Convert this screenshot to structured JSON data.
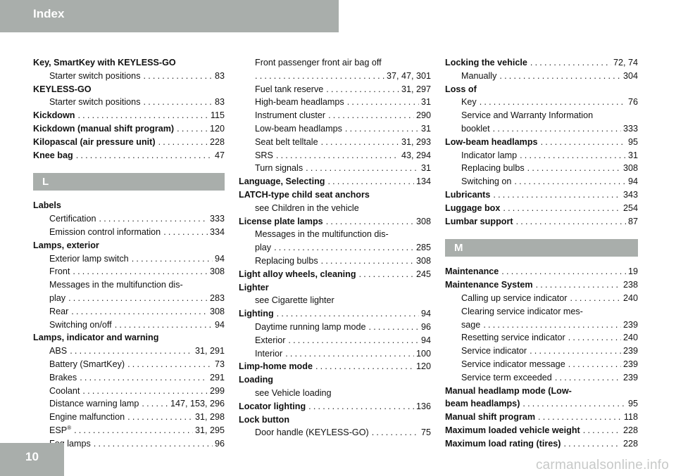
{
  "header": {
    "title": "Index"
  },
  "page": {
    "number": "10"
  },
  "watermark": "carmanualsonline.info",
  "columns": {
    "c1": {
      "k1": "Key, SmartKey with KEYLESS-GO",
      "k1a": "Starter switch positions",
      "k1a_p": "83",
      "k2": "KEYLESS-GO",
      "k2a": "Starter switch positions",
      "k2a_p": "83",
      "k3": "Kickdown",
      "k3_p": "115",
      "k4": "Kickdown (manual shift program)",
      "k4_p": "120",
      "k5": "Kilopascal (air pressure unit)",
      "k5_p": "228",
      "k6": "Knee bag",
      "k6_p": "47",
      "section_l": "L",
      "l1": "Labels",
      "l1a": "Certification",
      "l1a_p": "333",
      "l1b": "Emission control information",
      "l1b_p": "334",
      "l2": "Lamps, exterior",
      "l2a": "Exterior lamp switch",
      "l2a_p": "94",
      "l2b": "Front",
      "l2b_p": "308",
      "l2c1": "Messages in the multifunction dis-",
      "l2c2": "play",
      "l2c_p": "283",
      "l2d": "Rear",
      "l2d_p": "308",
      "l2e": "Switching on/off",
      "l2e_p": "94",
      "l3": "Lamps, indicator and warning",
      "l3a": "ABS",
      "l3a_p": "31, 291",
      "l3b": "Battery (SmartKey)",
      "l3b_p": "73",
      "l3c": "Brakes",
      "l3c_p": "291",
      "l3d": "Coolant",
      "l3d_p": "299",
      "l3e": "Distance warning lamp",
      "l3e_p": "147, 153, 296",
      "l3f": "Engine malfunction",
      "l3f_p": "31, 298",
      "l3g": "ESP",
      "l3g_sup": "®",
      "l3g_p": "31, 295",
      "l3h": "Fog lamps",
      "l3h_p": "96"
    },
    "c2": {
      "a1": "Front passenger front air bag off",
      "a1_p": "37, 47, 301",
      "a2": "Fuel tank reserve",
      "a2_p": "31, 297",
      "a3": "High-beam headlamps",
      "a3_p": "31",
      "a4": "Instrument cluster",
      "a4_p": "290",
      "a5": "Low-beam headlamps",
      "a5_p": "31",
      "a6": "Seat belt telltale",
      "a6_p": "31, 293",
      "a7": "SRS",
      "a7_p": "43, 294",
      "a8": "Turn signals",
      "a8_p": "31",
      "b1": "Language, Selecting",
      "b1_p": "134",
      "b2": "LATCH-type child seat anchors",
      "b2a": "see Children in the vehicle",
      "b3": "License plate lamps",
      "b3_p": "308",
      "b3a1": "Messages in the multifunction dis-",
      "b3a2": "play",
      "b3a_p": "285",
      "b3b": "Replacing bulbs",
      "b3b_p": "308",
      "b4": "Light alloy wheels, cleaning",
      "b4_p": "245",
      "b5": "Lighter",
      "b5a": "see Cigarette lighter",
      "b6": "Lighting",
      "b6_p": "94",
      "b6a": "Daytime running lamp mode",
      "b6a_p": "96",
      "b6b": "Exterior",
      "b6b_p": "94",
      "b6c": "Interior",
      "b6c_p": "100",
      "b7": "Limp-home mode",
      "b7_p": "120",
      "b8": "Loading",
      "b8a": "see Vehicle loading",
      "b9": "Locator lighting",
      "b9_p": "136",
      "b10": "Lock button",
      "b10a": "Door handle (KEYLESS-GO)",
      "b10a_p": "75"
    },
    "c3": {
      "c1": "Locking the vehicle",
      "c1_p": "72, 74",
      "c1a": "Manually",
      "c1a_p": "304",
      "c2": "Loss of",
      "c2a": "Key",
      "c2a_p": "76",
      "c2b1": "Service and Warranty Information",
      "c2b2": "booklet",
      "c2b_p": "333",
      "c3": "Low-beam headlamps",
      "c3_p": "95",
      "c3a": "Indicator lamp",
      "c3a_p": "31",
      "c3b": "Replacing bulbs",
      "c3b_p": "308",
      "c3c": "Switching on",
      "c3c_p": "94",
      "c4": "Lubricants",
      "c4_p": "343",
      "c5": "Luggage box",
      "c5_p": "254",
      "c6": "Lumbar support",
      "c6_p": "87",
      "section_m": "M",
      "m1": "Maintenance",
      "m1_p": "19",
      "m2": "Maintenance System",
      "m2_p": "238",
      "m2a": "Calling up service indicator",
      "m2a_p": "240",
      "m2b1": "Clearing service indicator mes-",
      "m2b2": "sage",
      "m2b_p": "239",
      "m2c": "Resetting service indicator",
      "m2c_p": "240",
      "m2d": "Service indicator",
      "m2d_p": "239",
      "m2e": "Service indicator message",
      "m2e_p": "239",
      "m2f": "Service term exceeded",
      "m2f_p": "239",
      "m3a": "Manual headlamp mode (Low-",
      "m3b": "beam headlamps)",
      "m3_p": "95",
      "m4": "Manual shift program",
      "m4_p": "118",
      "m5": "Maximum loaded vehicle weight",
      "m5_p": "228",
      "m6": "Maximum load rating (tires)",
      "m6_p": "228"
    }
  }
}
